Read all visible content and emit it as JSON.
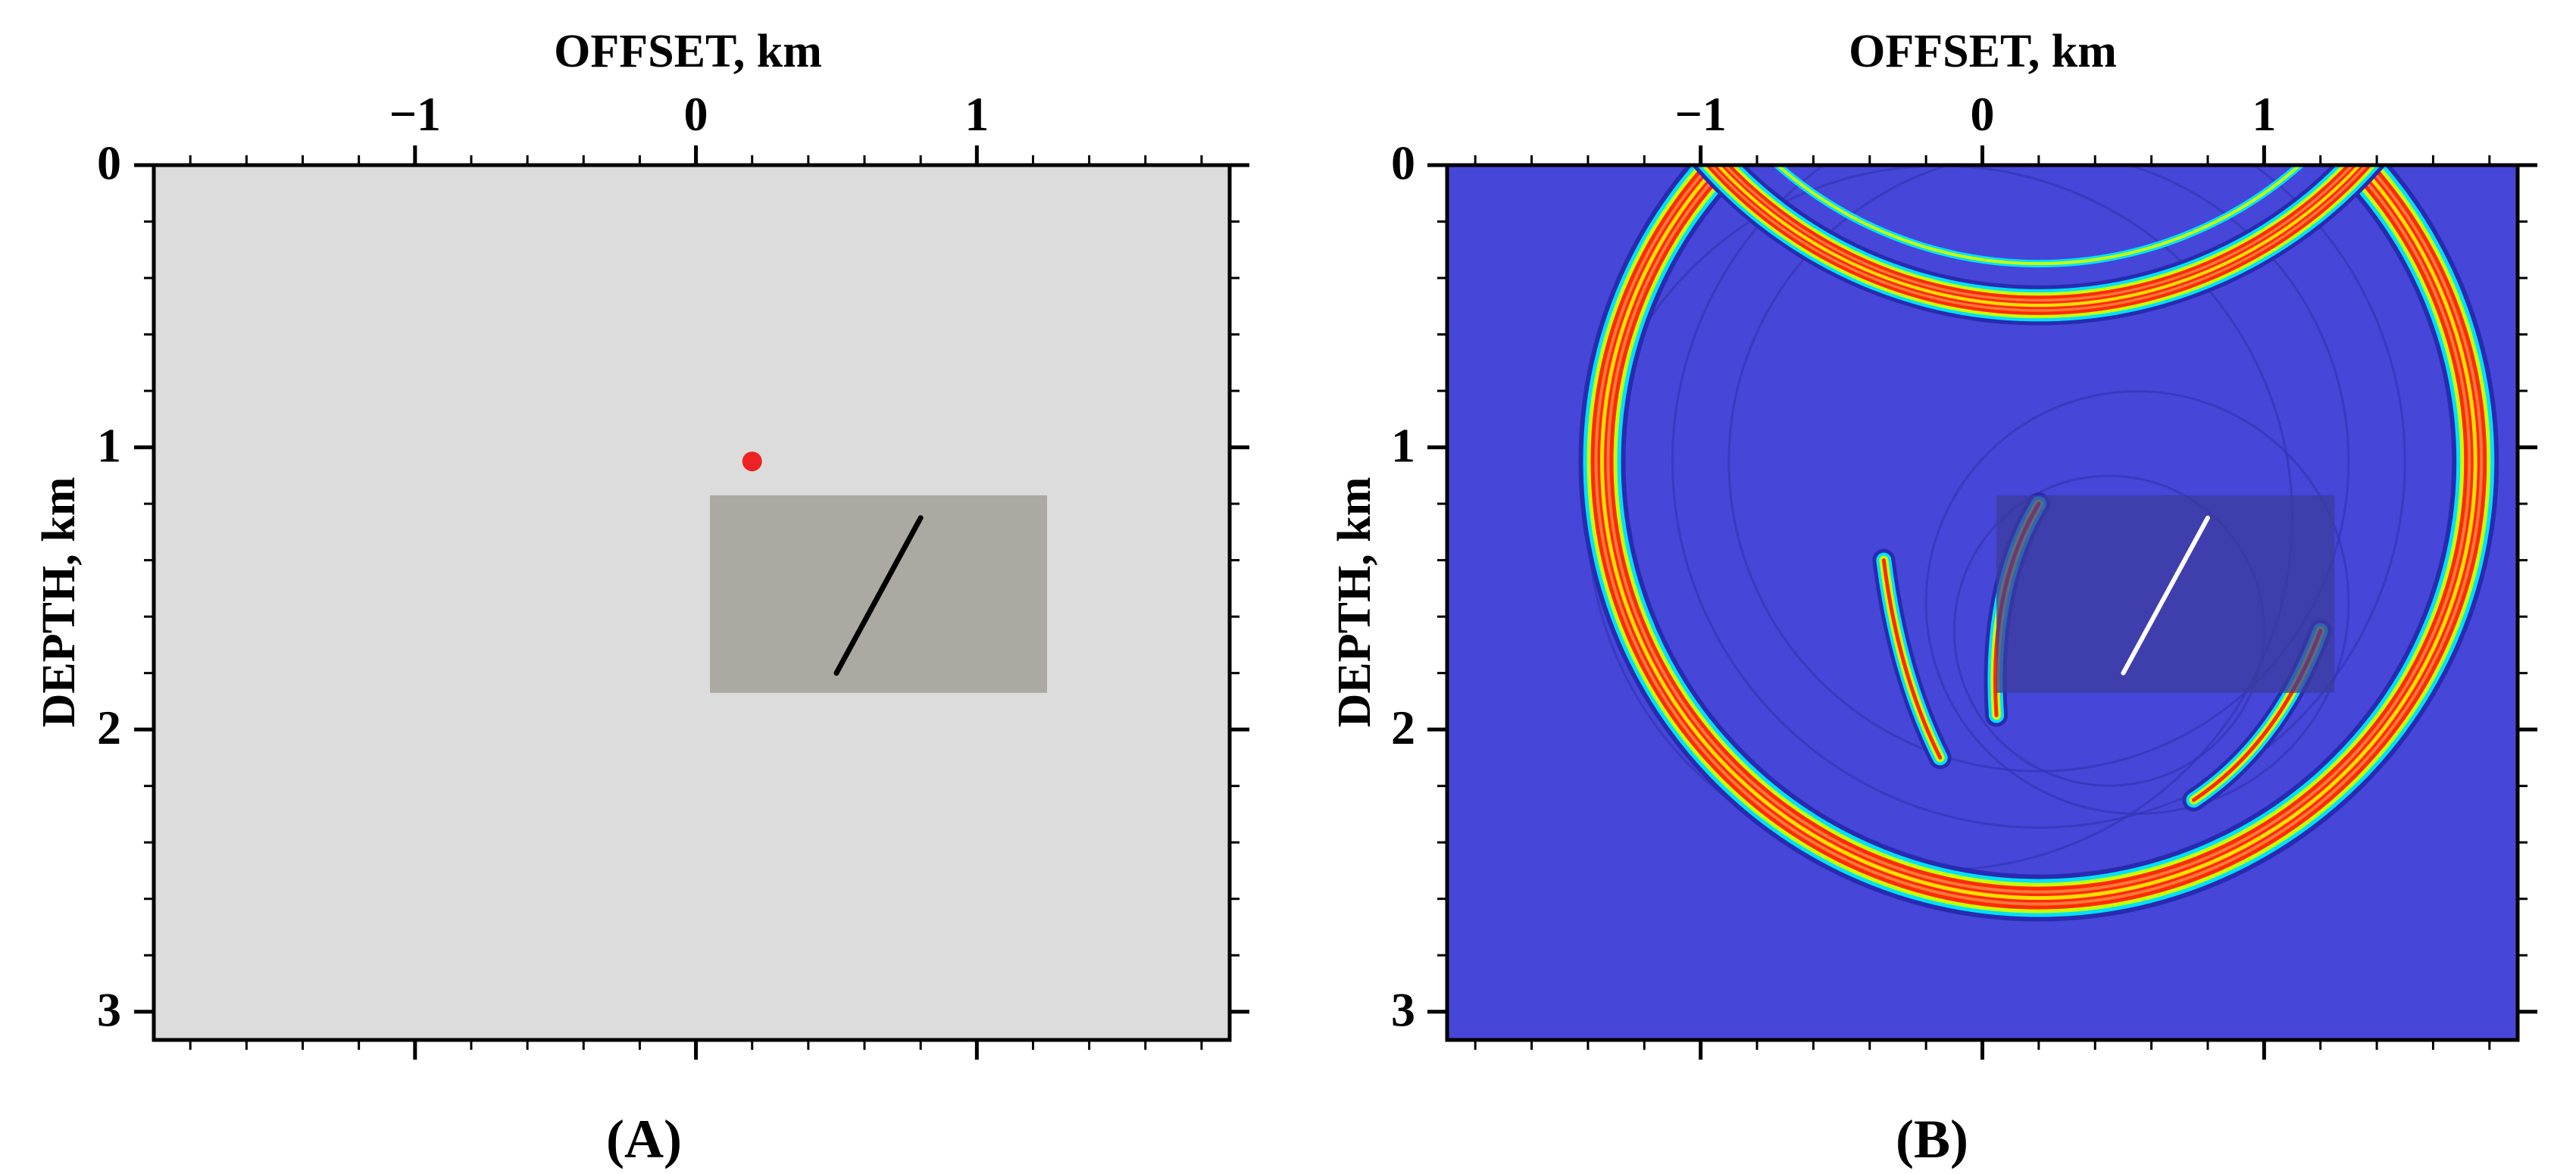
{
  "panels": [
    {
      "id": "A",
      "caption": "(A)",
      "x_axis_label": "OFFSET, km",
      "y_axis_label": "DEPTH, km",
      "x_ticks": [
        {
          "value": -1,
          "label": "−1"
        },
        {
          "value": 0,
          "label": "0"
        },
        {
          "value": 1,
          "label": "1"
        }
      ],
      "y_ticks": [
        {
          "value": 0,
          "label": "0"
        },
        {
          "value": 1,
          "label": "1"
        },
        {
          "value": 2,
          "label": "2"
        },
        {
          "value": 3,
          "label": "3"
        }
      ],
      "x_range": [
        -1.93,
        1.9
      ],
      "y_range": [
        0,
        3.1
      ],
      "background_color": "#dcdcdc",
      "block": {
        "x_range": [
          0.05,
          1.25
        ],
        "y_range": [
          1.17,
          1.87
        ],
        "color": "#aca9a3"
      },
      "fracture": {
        "from": [
          0.5,
          1.8
        ],
        "to": [
          0.8,
          1.25
        ],
        "color": "#000000"
      },
      "source": {
        "x": 0.2,
        "y": 1.05,
        "color": "#ee2222"
      }
    },
    {
      "id": "B",
      "caption": "(B)",
      "x_axis_label": "OFFSET, km",
      "y_axis_label": "DEPTH, km",
      "x_ticks": [
        {
          "value": -1,
          "label": "−1"
        },
        {
          "value": 0,
          "label": "0"
        },
        {
          "value": 1,
          "label": "1"
        }
      ],
      "y_ticks": [
        {
          "value": 0,
          "label": "0"
        },
        {
          "value": 1,
          "label": "1"
        },
        {
          "value": 2,
          "label": "2"
        },
        {
          "value": 3,
          "label": "3"
        }
      ],
      "x_range": [
        -1.9,
        1.9
      ],
      "y_range": [
        0,
        3.1
      ],
      "background_color": "#4646d8",
      "block": {
        "x_range": [
          0.05,
          1.25
        ],
        "y_range": [
          1.17,
          1.87
        ],
        "color": "#3c3c9e"
      },
      "fracture": {
        "from": [
          0.5,
          1.8
        ],
        "to": [
          0.8,
          1.25
        ],
        "color": "#ffffff"
      },
      "wavefront": {
        "center": [
          0.2,
          1.05
        ],
        "radius_km": 1.55
      },
      "wavefront_colors": [
        "#2a2ab0",
        "#00e0ff",
        "#c8ff00",
        "#ff2a00",
        "#ff7a3a",
        "#ffe000"
      ]
    }
  ]
}
